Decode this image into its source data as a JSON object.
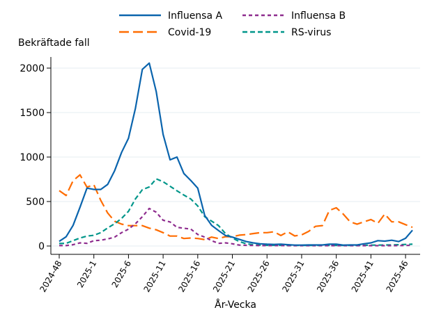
{
  "chart_data": {
    "type": "line",
    "title": "",
    "ylabel": "Bekräftade fall",
    "xlabel": "År-Vecka",
    "ylim": [
      0,
      2100
    ],
    "yticks": [
      0,
      500,
      1000,
      1500,
      2000
    ],
    "grid": "horizontal",
    "legend_placement": "top",
    "x": [
      "2024-48",
      "2024-49",
      "2024-50",
      "2024-51",
      "2024-52",
      "2025-1",
      "2025-2",
      "2025-3",
      "2025-4",
      "2025-5",
      "2025-6",
      "2025-7",
      "2025-8",
      "2025-9",
      "2025-10",
      "2025-11",
      "2025-12",
      "2025-13",
      "2025-14",
      "2025-15",
      "2025-16",
      "2025-17",
      "2025-18",
      "2025-19",
      "2025-20",
      "2025-21",
      "2025-22",
      "2025-23",
      "2025-24",
      "2025-25",
      "2025-26",
      "2025-27",
      "2025-28",
      "2025-29",
      "2025-30",
      "2025-31",
      "2025-32",
      "2025-33",
      "2025-34",
      "2025-35",
      "2025-36",
      "2025-37",
      "2025-38",
      "2025-39",
      "2025-40",
      "2025-41",
      "2025-42",
      "2025-43",
      "2025-44",
      "2025-45",
      "2025-46",
      "2025-47"
    ],
    "xtick_labels": [
      "2024-48",
      "2025-1",
      "2025-6",
      "2025-11",
      "2025-16",
      "2025-21",
      "2025-26",
      "2025-31",
      "2025-36",
      "2025-41",
      "2025-46"
    ],
    "series": [
      {
        "name": "Influensa A",
        "color": "#0a64ad",
        "style": "solid",
        "values": [
          52,
          104,
          232,
          435,
          651,
          636,
          636,
          693,
          846,
          1052,
          1211,
          1549,
          1986,
          2056,
          1737,
          1255,
          969,
          1000,
          815,
          736,
          651,
          344,
          232,
          174,
          118,
          100,
          75,
          50,
          35,
          25,
          20,
          18,
          20,
          15,
          10,
          10,
          12,
          12,
          12,
          20,
          20,
          10,
          12,
          12,
          25,
          35,
          60,
          55,
          65,
          50,
          87,
          177
        ]
      },
      {
        "name": "Influensa B",
        "color": "#8e2c8e",
        "style": "short-dash",
        "values": [
          5,
          5,
          15,
          35,
          30,
          60,
          65,
          80,
          100,
          150,
          190,
          250,
          330,
          422,
          380,
          290,
          270,
          210,
          200,
          190,
          130,
          100,
          60,
          30,
          35,
          25,
          10,
          8,
          6,
          5,
          5,
          5,
          5,
          4,
          4,
          4,
          4,
          4,
          4,
          4,
          4,
          4,
          4,
          4,
          4,
          4,
          4,
          4,
          4,
          5,
          6,
          8
        ]
      },
      {
        "name": "Covid-19",
        "color": "#ff6c00",
        "style": "long-dash",
        "values": [
          623,
          568,
          734,
          800,
          662,
          689,
          513,
          370,
          279,
          246,
          229,
          229,
          229,
          201,
          182,
          150,
          112,
          112,
          84,
          90,
          84,
          72,
          100,
          84,
          105,
          104,
          122,
          128,
          140,
          150,
          150,
          160,
          118,
          160,
          113,
          125,
          164,
          221,
          230,
          400,
          430,
          359,
          272,
          245,
          272,
          298,
          255,
          359,
          272,
          272,
          240,
          210
        ]
      },
      {
        "name": "RS-virus",
        "color": "#00968a",
        "style": "dash",
        "values": [
          28,
          30,
          60,
          90,
          112,
          120,
          150,
          203,
          250,
          310,
          390,
          530,
          633,
          664,
          755,
          723,
          672,
          620,
          573,
          528,
          450,
          330,
          280,
          230,
          140,
          90,
          50,
          25,
          15,
          10,
          8,
          8,
          8,
          6,
          6,
          6,
          6,
          6,
          6,
          6,
          6,
          6,
          6,
          6,
          8,
          10,
          10,
          12,
          12,
          15,
          18,
          20
        ]
      }
    ]
  }
}
